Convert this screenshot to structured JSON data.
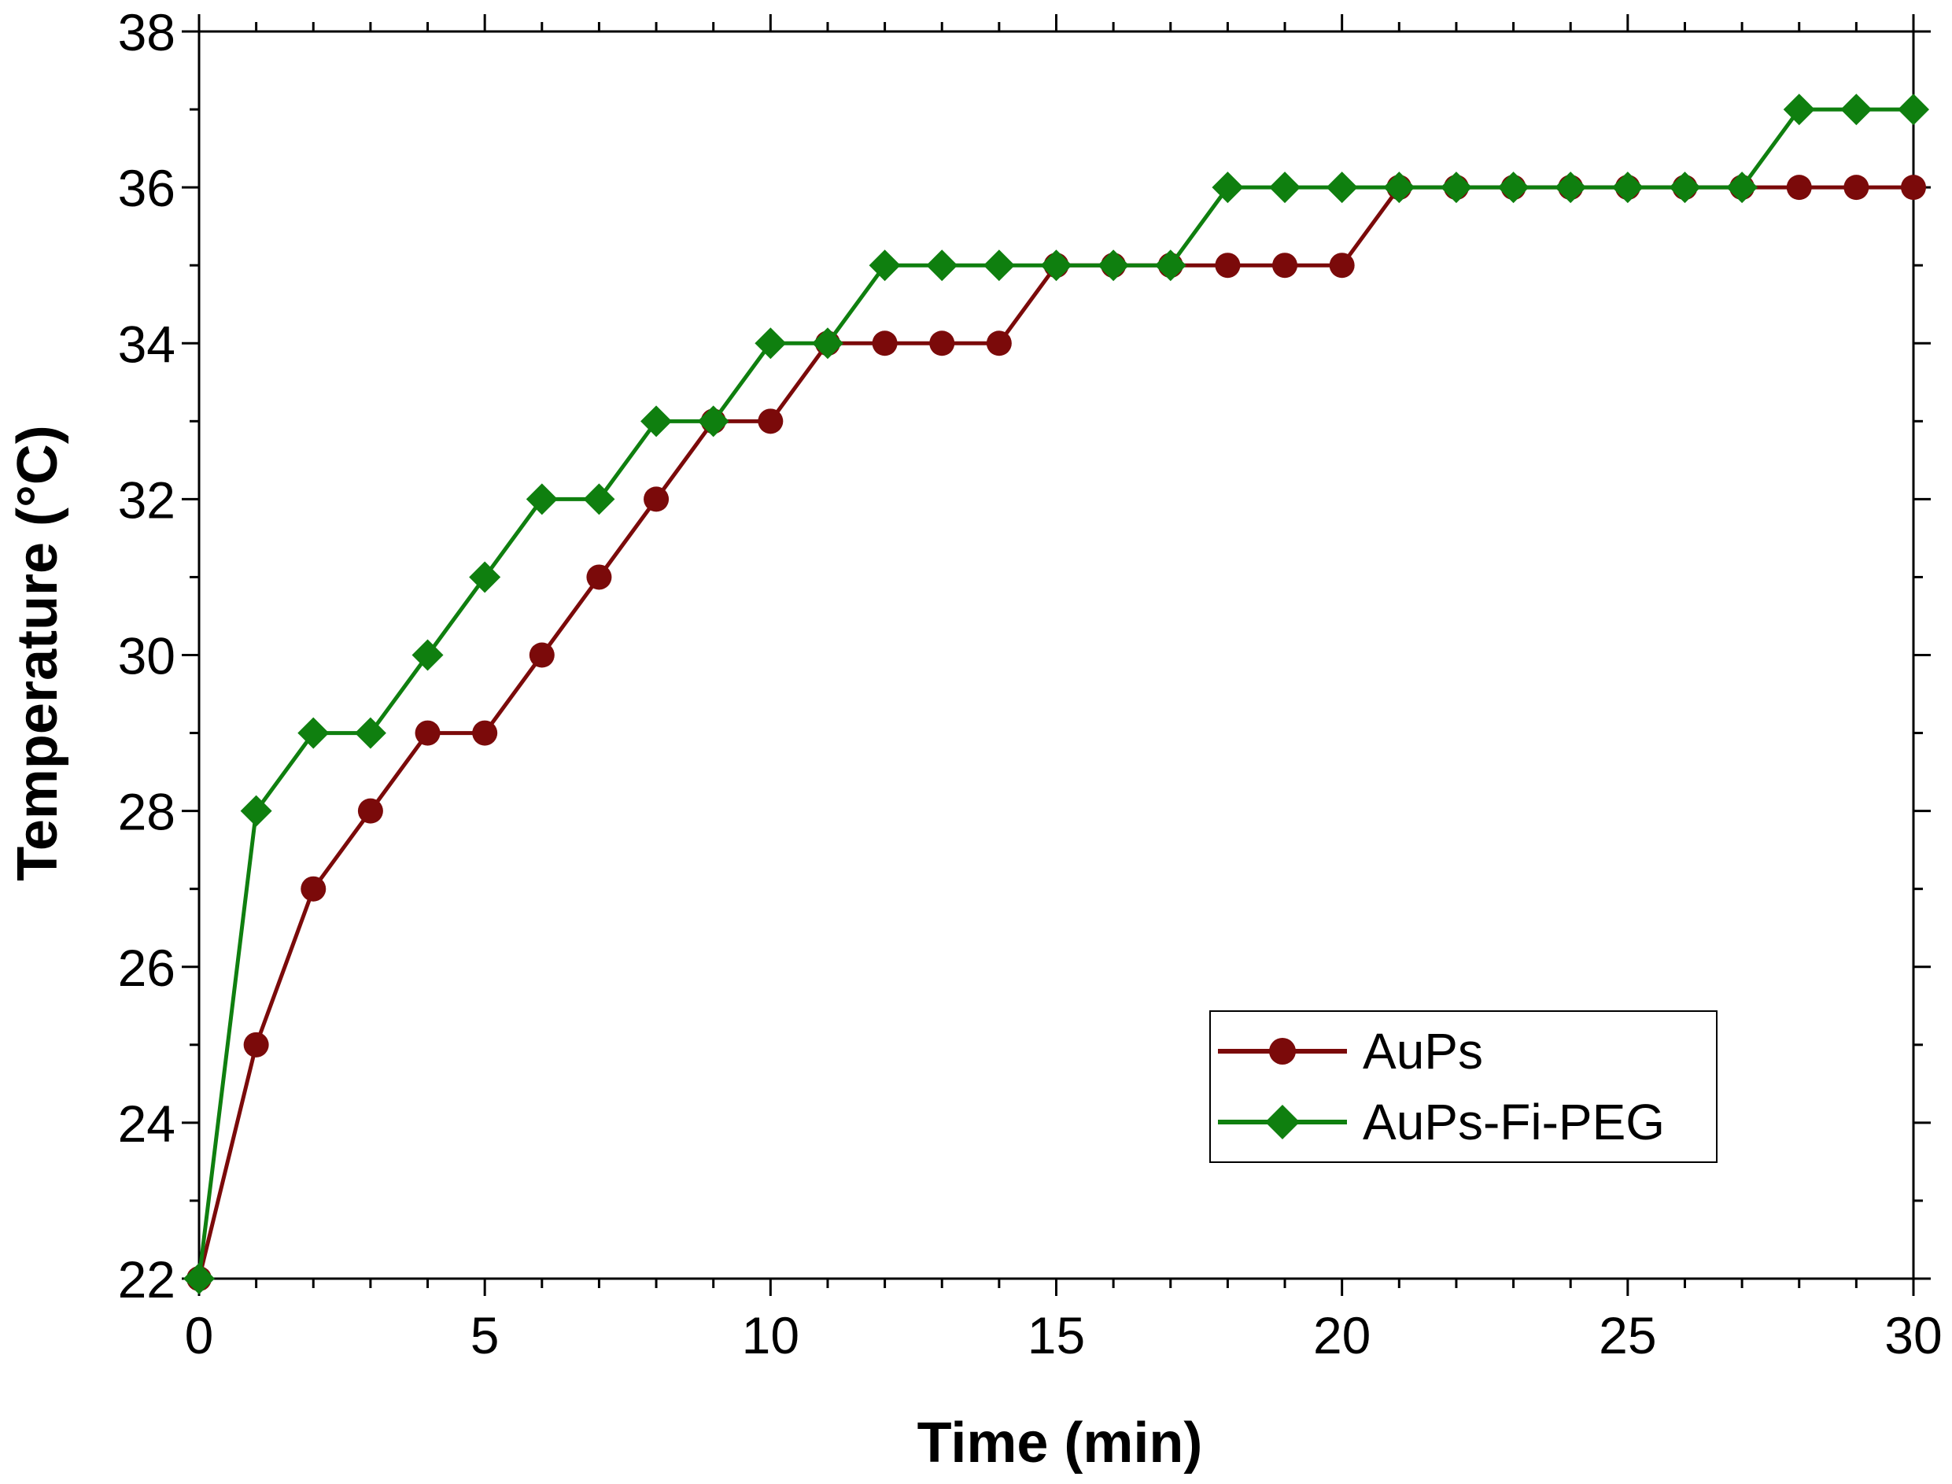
{
  "chart_data": {
    "type": "line",
    "title": "",
    "xlabel": "Time (min)",
    "ylabel": "Temperature (°C)",
    "xlim": [
      0,
      30
    ],
    "ylim": [
      22,
      38
    ],
    "x_ticks": [
      0,
      5,
      10,
      15,
      20,
      25,
      30
    ],
    "y_ticks": [
      22,
      24,
      26,
      28,
      30,
      32,
      34,
      36,
      38
    ],
    "x_tick_labels": [
      "0",
      "5",
      "10",
      "15",
      "20",
      "25",
      "30"
    ],
    "y_tick_labels": [
      "22",
      "24",
      "26",
      "28",
      "30",
      "32",
      "34",
      "36",
      "38"
    ],
    "grid": false,
    "legend_position": "lower-right",
    "x": [
      0,
      1,
      2,
      3,
      4,
      5,
      6,
      7,
      8,
      9,
      10,
      11,
      12,
      13,
      14,
      15,
      16,
      17,
      18,
      19,
      20,
      21,
      22,
      23,
      24,
      25,
      26,
      27,
      28,
      29,
      30
    ],
    "series": [
      {
        "name": "AuPs",
        "color": "#7b0a0a",
        "marker": "circle",
        "values": [
          22,
          25,
          27,
          28,
          29,
          29,
          30,
          31,
          32,
          33,
          33,
          34,
          34,
          34,
          34,
          35,
          35,
          35,
          35,
          35,
          35,
          36,
          36,
          36,
          36,
          36,
          36,
          36,
          36,
          36,
          36
        ]
      },
      {
        "name": "AuPs-Fi-PEG",
        "color": "#0f7f0f",
        "marker": "diamond",
        "values": [
          22,
          28,
          29,
          29,
          30,
          31,
          32,
          32,
          33,
          33,
          34,
          34,
          35,
          35,
          35,
          35,
          35,
          35,
          36,
          36,
          36,
          36,
          36,
          36,
          36,
          36,
          36,
          36,
          37,
          37,
          37
        ]
      }
    ]
  }
}
